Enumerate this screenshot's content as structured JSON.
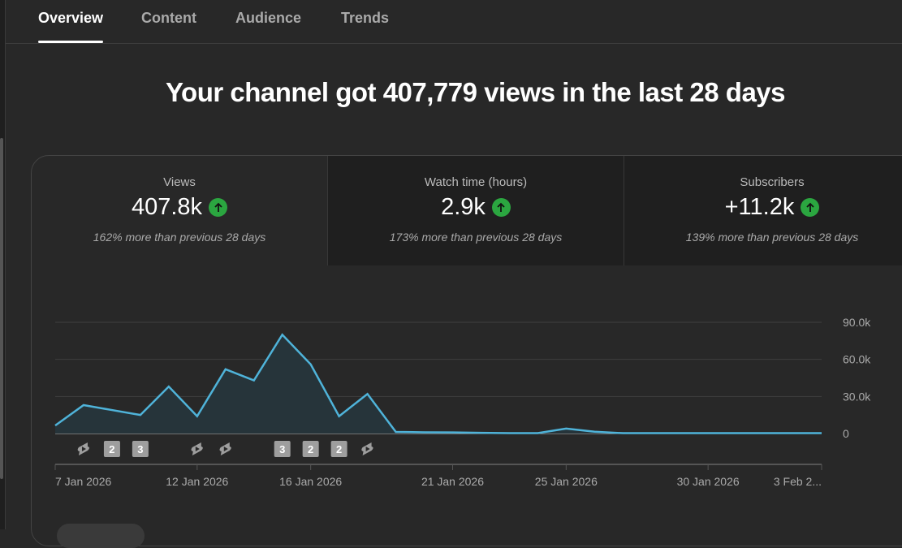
{
  "tabs": [
    {
      "label": "Overview",
      "active": true
    },
    {
      "label": "Content"
    },
    {
      "label": "Audience"
    },
    {
      "label": "Trends"
    }
  ],
  "headline": "Your channel got 407,779 views in the last 28 days",
  "metrics": [
    {
      "label": "Views",
      "value": "407.8k",
      "comparison": "162% more than previous 28 days",
      "trend": "up"
    },
    {
      "label": "Watch time (hours)",
      "value": "2.9k",
      "comparison": "173% more than previous 28 days",
      "trend": "up"
    },
    {
      "label": "Subscribers",
      "value": "+11.2k",
      "comparison": "139% more than previous 28 days",
      "trend": "up"
    }
  ],
  "colors": {
    "line": "#4fb3d9",
    "fill": "#26343a",
    "up": "#2ba640"
  },
  "chart_data": {
    "type": "area",
    "title": "Views",
    "x": [
      "7 Jan",
      "8 Jan",
      "9 Jan",
      "10 Jan",
      "11 Jan",
      "12 Jan",
      "13 Jan",
      "14 Jan",
      "15 Jan",
      "16 Jan",
      "17 Jan",
      "18 Jan",
      "19 Jan",
      "20 Jan",
      "21 Jan",
      "22 Jan",
      "23 Jan",
      "24 Jan",
      "25 Jan",
      "26 Jan",
      "27 Jan",
      "28 Jan",
      "29 Jan",
      "30 Jan",
      "31 Jan",
      "1 Feb",
      "2 Feb",
      "3 Feb"
    ],
    "values": [
      6500,
      23000,
      19000,
      15000,
      38000,
      14000,
      52000,
      43000,
      80000,
      56000,
      14000,
      32000,
      1300,
      1000,
      900,
      600,
      300,
      300,
      4000,
      1500,
      300,
      300,
      300,
      300,
      300,
      300,
      300,
      300
    ],
    "ylim": [
      0,
      90000
    ],
    "yticks": [
      {
        "v": 90000,
        "label": "90.0k"
      },
      {
        "v": 60000,
        "label": "60.0k"
      },
      {
        "v": 30000,
        "label": "30.0k"
      },
      {
        "v": 0,
        "label": "0"
      }
    ],
    "xticks": [
      {
        "i": 0,
        "label": "7 Jan 2026"
      },
      {
        "i": 5,
        "label": "12 Jan 2026"
      },
      {
        "i": 9,
        "label": "16 Jan 2026"
      },
      {
        "i": 14,
        "label": "21 Jan 2026"
      },
      {
        "i": 18,
        "label": "25 Jan 2026"
      },
      {
        "i": 23,
        "label": "30 Jan 2026"
      },
      {
        "i": 27,
        "label": "3 Feb 2..."
      }
    ],
    "markers": [
      {
        "i": 1,
        "type": "short"
      },
      {
        "i": 2,
        "type": "count",
        "label": "2"
      },
      {
        "i": 3,
        "type": "count",
        "label": "3"
      },
      {
        "i": 5,
        "type": "short"
      },
      {
        "i": 6,
        "type": "short"
      },
      {
        "i": 8,
        "type": "count",
        "label": "3"
      },
      {
        "i": 9,
        "type": "count",
        "label": "2"
      },
      {
        "i": 10,
        "type": "count",
        "label": "2"
      },
      {
        "i": 11,
        "type": "short"
      }
    ]
  }
}
